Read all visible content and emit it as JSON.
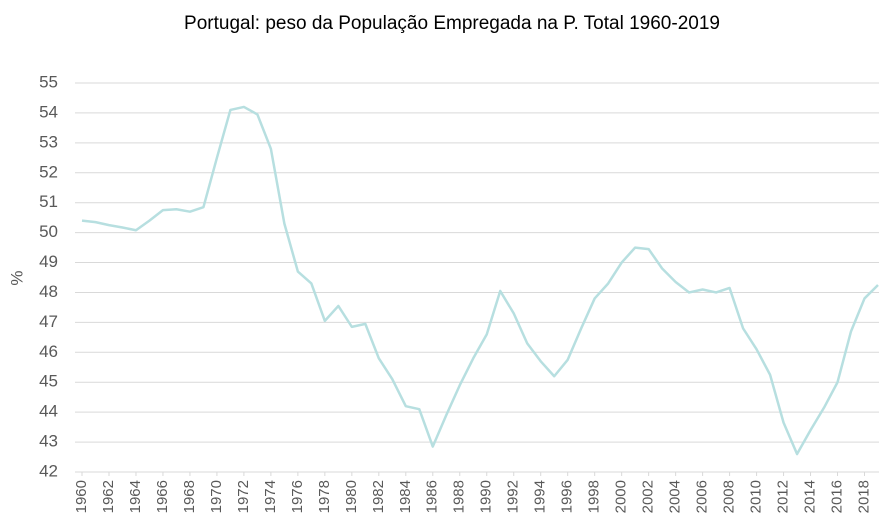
{
  "chart_data": {
    "type": "line",
    "title": "Portugal: peso da População Empregada na P. Total 1960-2019",
    "y_label": "%",
    "x": [
      1960,
      1961,
      1962,
      1963,
      1964,
      1965,
      1966,
      1967,
      1968,
      1969,
      1970,
      1971,
      1972,
      1973,
      1974,
      1975,
      1976,
      1977,
      1978,
      1979,
      1980,
      1981,
      1982,
      1983,
      1984,
      1985,
      1986,
      1987,
      1988,
      1989,
      1990,
      1991,
      1992,
      1993,
      1994,
      1995,
      1996,
      1997,
      1998,
      1999,
      2000,
      2001,
      2002,
      2003,
      2004,
      2005,
      2006,
      2007,
      2008,
      2009,
      2010,
      2011,
      2012,
      2013,
      2014,
      2015,
      2016,
      2017,
      2018,
      2019
    ],
    "series": [
      {
        "name": "População Empregada",
        "color": "#b7dfe0",
        "values": [
          50.4,
          50.35,
          50.25,
          50.17,
          50.08,
          50.4,
          50.75,
          50.78,
          50.7,
          50.85,
          52.5,
          54.1,
          54.2,
          53.95,
          52.8,
          50.3,
          48.7,
          48.3,
          47.05,
          47.55,
          46.85,
          46.95,
          45.8,
          45.1,
          44.2,
          44.1,
          42.85,
          43.9,
          44.9,
          45.8,
          46.6,
          48.05,
          47.3,
          46.3,
          45.7,
          45.2,
          45.75,
          46.8,
          47.8,
          48.3,
          49.0,
          49.5,
          49.45,
          48.8,
          48.35,
          48.0,
          48.1,
          48.0,
          48.15,
          46.8,
          46.1,
          45.25,
          43.65,
          42.6,
          43.4,
          44.15,
          45.0,
          46.7,
          47.8,
          48.25
        ]
      }
    ],
    "xlim": [
      1960,
      2019
    ],
    "xticks": [
      1960,
      1962,
      1964,
      1966,
      1968,
      1970,
      1972,
      1974,
      1976,
      1978,
      1980,
      1982,
      1984,
      1986,
      1988,
      1990,
      1992,
      1994,
      1996,
      1998,
      2000,
      2002,
      2004,
      2006,
      2008,
      2010,
      2012,
      2014,
      2016,
      2018
    ],
    "ylim": [
      42,
      55
    ],
    "yticks": [
      42,
      43,
      44,
      45,
      46,
      47,
      48,
      49,
      50,
      51,
      52,
      53,
      54,
      55
    ],
    "grid": true
  }
}
